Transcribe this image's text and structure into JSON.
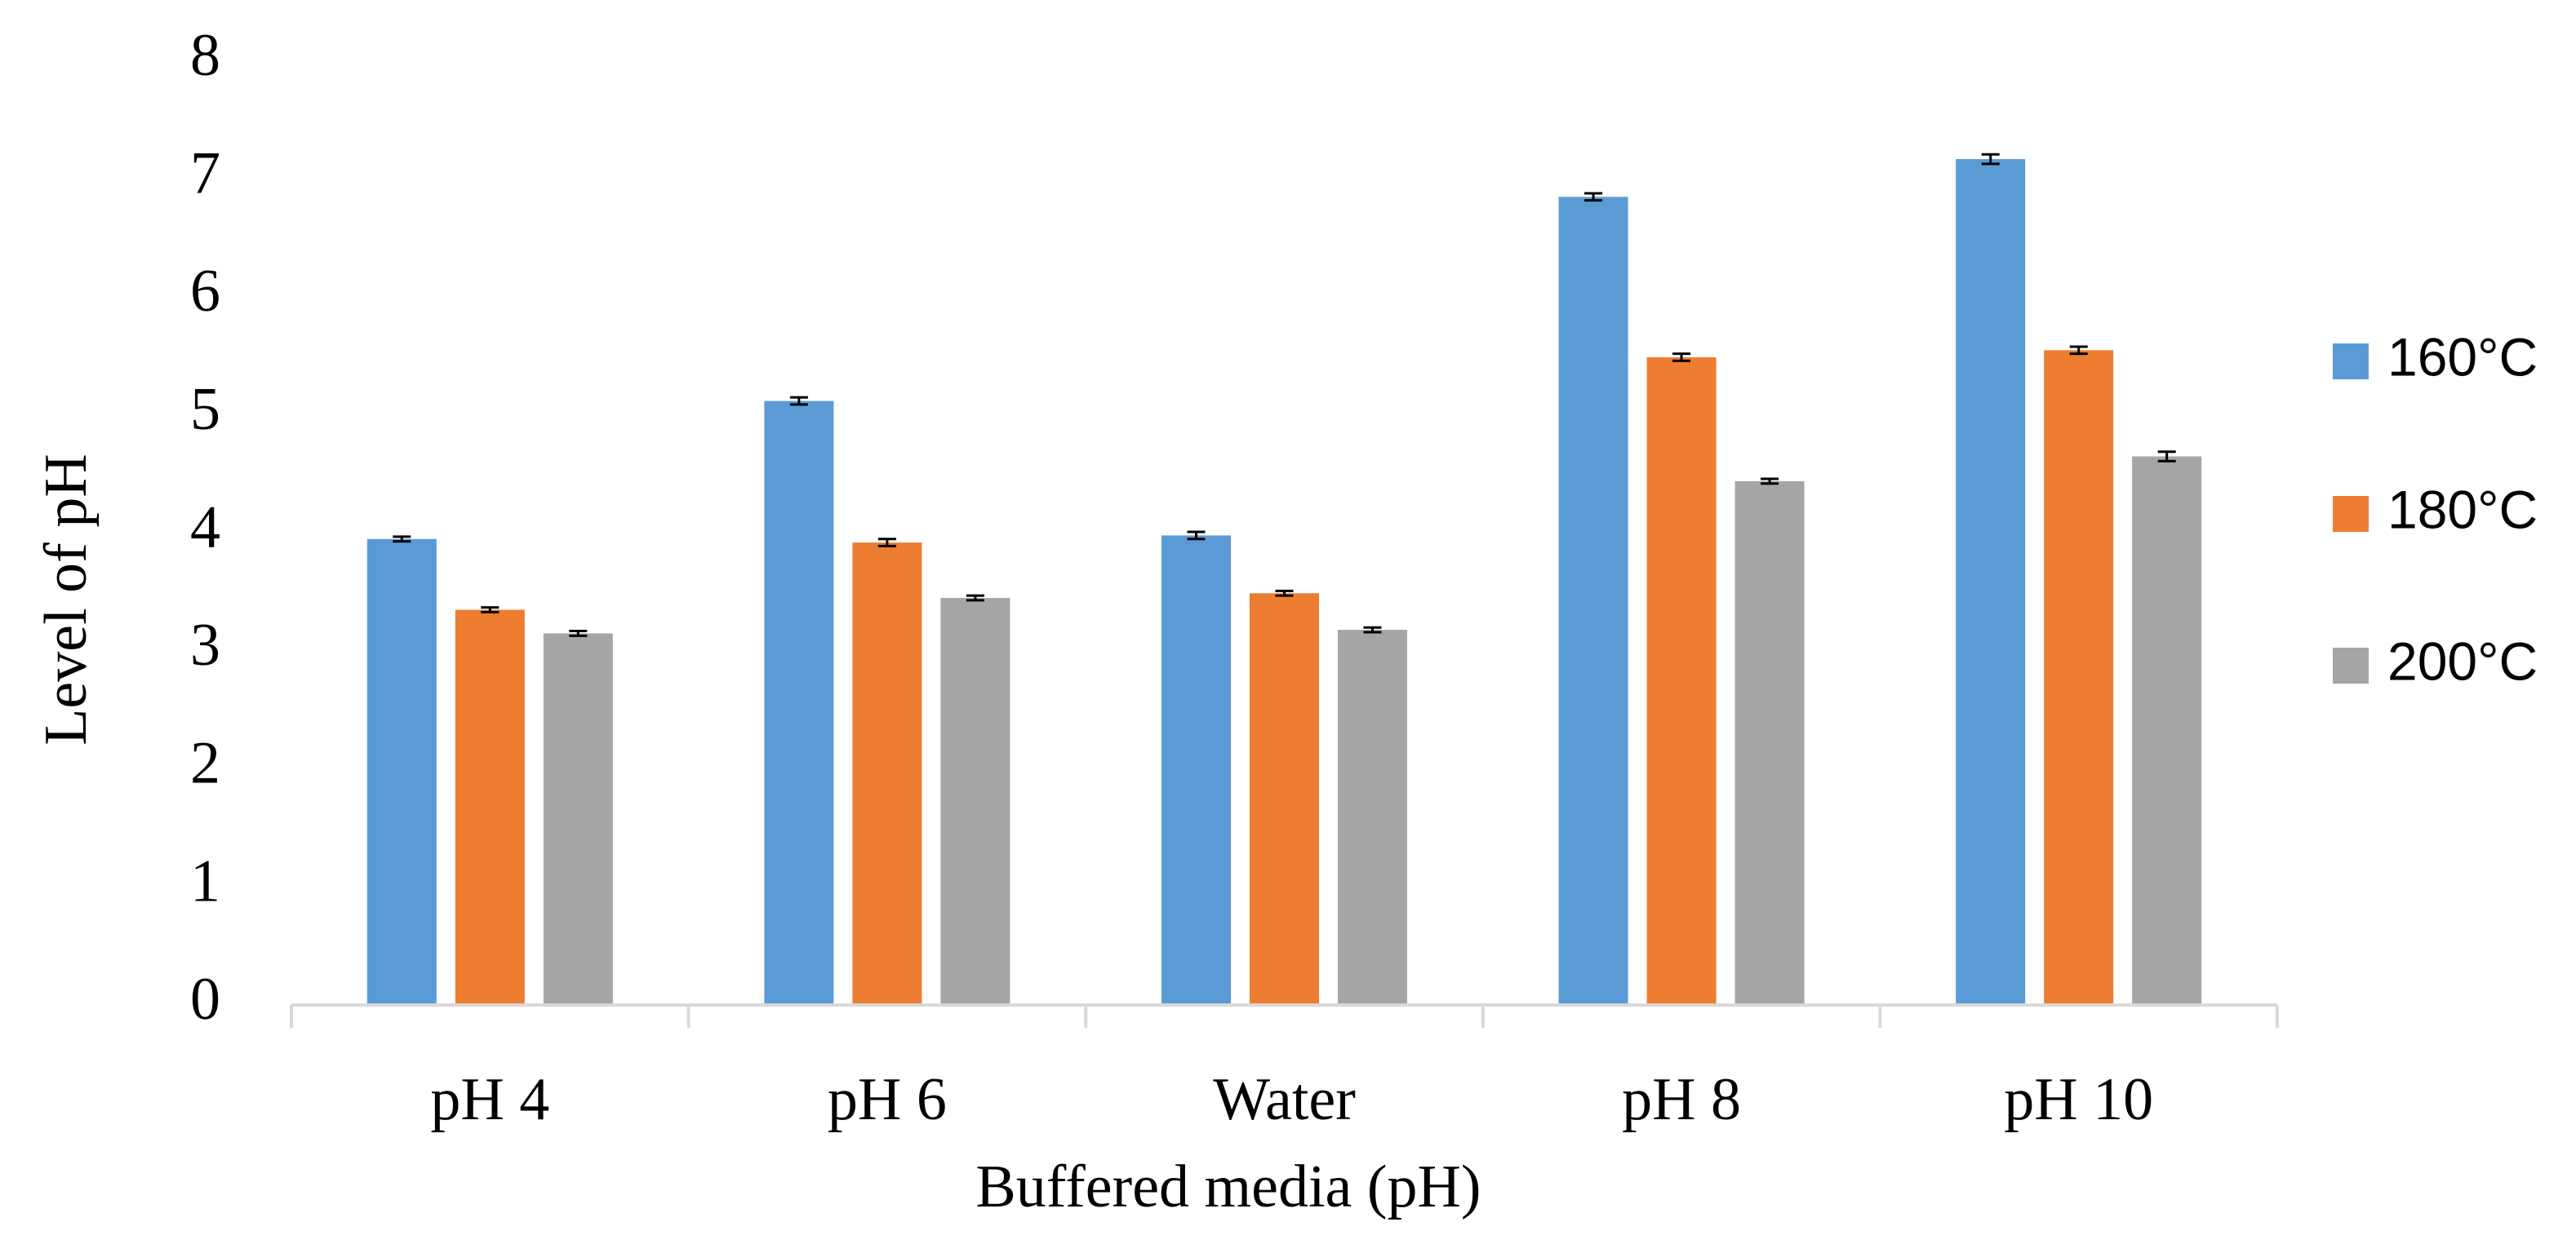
{
  "chart_data": {
    "type": "bar",
    "title": "",
    "xlabel": "Buffered media (pH)",
    "ylabel": "Level of pH",
    "ylim": [
      0,
      8
    ],
    "yticks": [
      0,
      1,
      2,
      3,
      4,
      5,
      6,
      7,
      8
    ],
    "grid": false,
    "legend_position": "right",
    "error_bars": true,
    "categories": [
      "pH 4",
      "pH 6",
      "Water",
      "pH 8",
      "pH 10"
    ],
    "series": [
      {
        "name": "160°C",
        "color": "#5B9BD5",
        "values": [
          3.95,
          5.12,
          3.98,
          6.85,
          7.17
        ],
        "errors": [
          0.02,
          0.03,
          0.03,
          0.03,
          0.04
        ]
      },
      {
        "name": "180°C",
        "color": "#ED7D31",
        "values": [
          3.35,
          3.92,
          3.49,
          5.49,
          5.55
        ],
        "errors": [
          0.02,
          0.03,
          0.02,
          0.03,
          0.03
        ]
      },
      {
        "name": "200°C",
        "color": "#A5A5A5",
        "values": [
          3.15,
          3.45,
          3.18,
          4.44,
          4.65
        ],
        "errors": [
          0.02,
          0.02,
          0.02,
          0.02,
          0.04
        ]
      }
    ]
  }
}
